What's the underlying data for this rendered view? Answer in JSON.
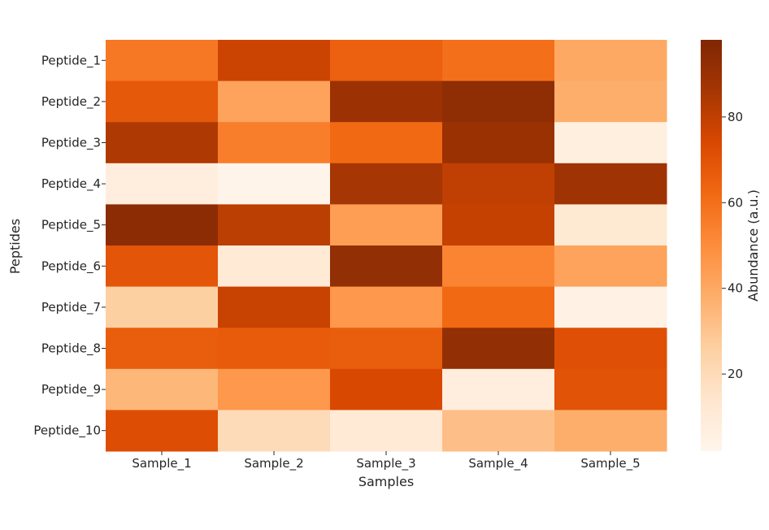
{
  "chart_data": {
    "type": "heatmap",
    "title": "",
    "xlabel": "Samples",
    "ylabel": "Peptides",
    "x_categories": [
      "Sample_1",
      "Sample_2",
      "Sample_3",
      "Sample_4",
      "Sample_5"
    ],
    "y_categories": [
      "Peptide_1",
      "Peptide_2",
      "Peptide_3",
      "Peptide_4",
      "Peptide_5",
      "Peptide_6",
      "Peptide_7",
      "Peptide_8",
      "Peptide_9",
      "Peptide_10"
    ],
    "values": [
      [
        57,
        77,
        65,
        60,
        40
      ],
      [
        68,
        42,
        89,
        93,
        38
      ],
      [
        84,
        55,
        62,
        90,
        7
      ],
      [
        8,
        3,
        86,
        80,
        88
      ],
      [
        94,
        81,
        44,
        79,
        12
      ],
      [
        69,
        11,
        92,
        53,
        42
      ],
      [
        26,
        78,
        46,
        62,
        5
      ],
      [
        66,
        67,
        66,
        92,
        71
      ],
      [
        35,
        46,
        74,
        8,
        70
      ],
      [
        72,
        20,
        11,
        32,
        38
      ]
    ],
    "colormap": "Oranges",
    "vmin": 2,
    "vmax": 98,
    "colorbar": {
      "label": "Abundance (a.u.)",
      "ticks": [
        20,
        40,
        60,
        80
      ],
      "tick_labels": [
        "20",
        "40",
        "60",
        "80"
      ]
    }
  }
}
